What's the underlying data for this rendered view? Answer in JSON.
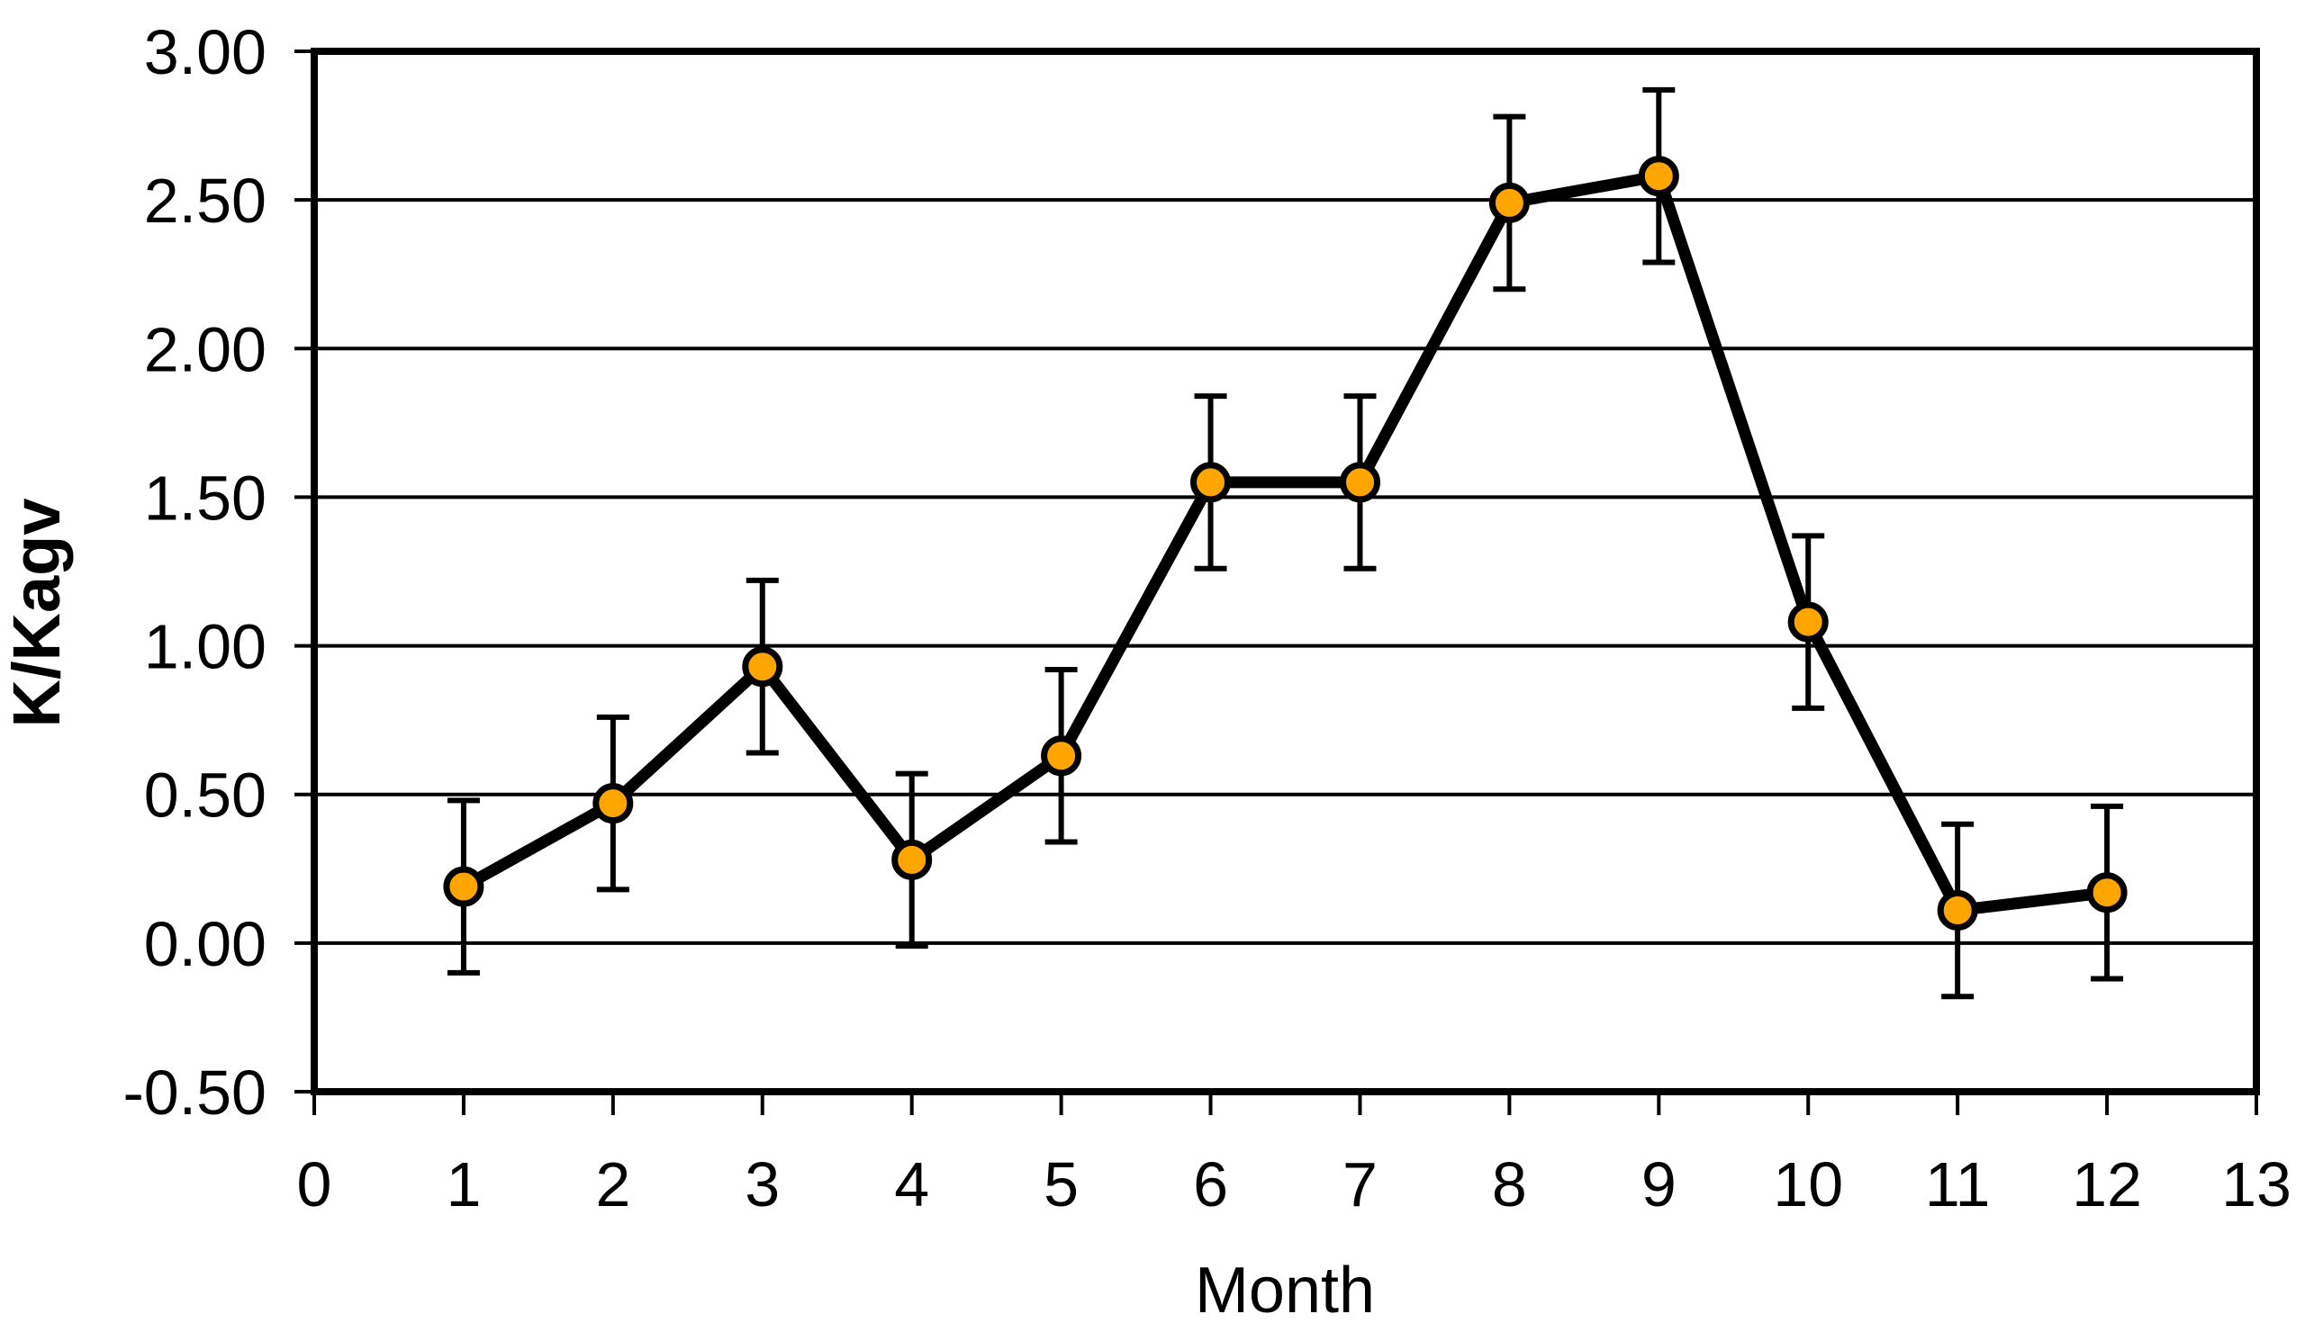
{
  "chart_data": {
    "type": "line",
    "title": "",
    "xlabel": "Month",
    "ylabel": "K/Kagv",
    "x": [
      1,
      2,
      3,
      4,
      5,
      6,
      7,
      8,
      9,
      10,
      11,
      12
    ],
    "values": [
      0.19,
      0.47,
      0.93,
      0.28,
      0.63,
      1.55,
      1.55,
      2.49,
      2.58,
      1.08,
      0.11,
      0.17
    ],
    "error_bars": {
      "type": "symmetric",
      "value": 0.29
    },
    "xlim": [
      0,
      13
    ],
    "ylim": [
      -0.5,
      3.0
    ],
    "x_ticks": [
      0,
      1,
      2,
      3,
      4,
      5,
      6,
      7,
      8,
      9,
      10,
      11,
      12,
      13
    ],
    "x_tick_labels": [
      "0",
      "1",
      "2",
      "3",
      "4",
      "5",
      "6",
      "7",
      "8",
      "9",
      "10",
      "11",
      "12",
      "13"
    ],
    "y_ticks": [
      -0.5,
      0.0,
      0.5,
      1.0,
      1.5,
      2.0,
      2.5,
      3.0
    ],
    "y_tick_labels": [
      "-0.50",
      "0.00",
      "0.50",
      "1.00",
      "1.50",
      "2.00",
      "2.50",
      "3.00"
    ],
    "grid": "horizontal",
    "legend": "none",
    "line_color": "#000000",
    "marker": {
      "shape": "circle",
      "fill": "#FFA500",
      "stroke": "#000000"
    },
    "frame_color": "#000000",
    "background_color": "#FFFFFF"
  }
}
